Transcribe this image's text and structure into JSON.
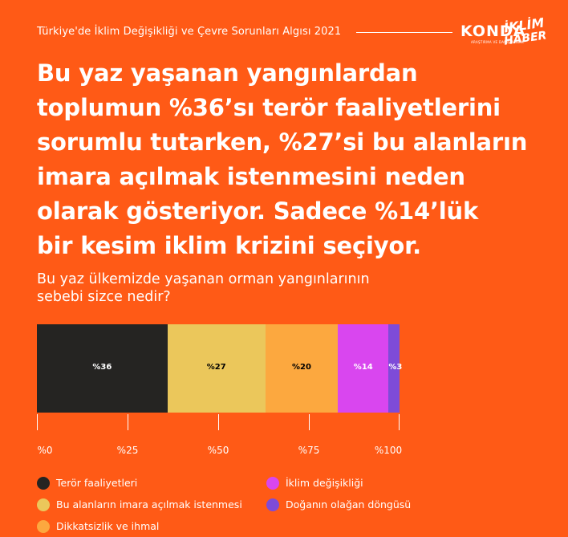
{
  "header": {
    "survey_title": "Türkiye'de İklim Değişikliği ve Çevre Sorunları Algısı 2021",
    "konda_logo": "KONDA",
    "konda_sub": "ARAŞTIRMA VE DANIŞMANLIK",
    "brand_line1": "İKLİM",
    "brand_line2": "HABER"
  },
  "headline": {
    "lines": [
      "Bu yaz yaşanan yangınlardan",
      "toplumun %36’sı terör faaliyetlerini",
      "sorumlu tutarken, %27’si bu alanların",
      "imara açılmak istenmesini neden",
      "olarak gösteriyor. Sadece %14’lük",
      "bir kesim iklim krizini seçiyor."
    ]
  },
  "question": {
    "lines": [
      "Bu yaz ülkemizde yaşanan orman yangınlarının",
      "sebebi sizce nedir?"
    ]
  },
  "chart_data": {
    "type": "bar",
    "orientation": "horizontal-stacked",
    "categories": [
      "Terör faaliyetleri",
      "Bu alanların imara açılmak istenmesi",
      "Dikkatsizlik ve ihmal",
      "İklim değişikliği",
      "Doğanın olağan döngüsü"
    ],
    "values": [
      36,
      27,
      20,
      14,
      3
    ],
    "data_labels": [
      "%36",
      "%27",
      "%20",
      "%14",
      "%3"
    ],
    "colors": [
      "#252422",
      "#EBC75B",
      "#FCA83F",
      "#D946EF",
      "#7E4BD8"
    ],
    "label_colors": [
      "#ffffff",
      "#000000",
      "#000000",
      "#ffffff",
      "#ffffff"
    ],
    "xlim": [
      0,
      100
    ],
    "x_ticks": [
      0,
      25,
      50,
      75,
      100
    ],
    "x_tick_labels": [
      "%0",
      "%25",
      "%50",
      "%75",
      "%100"
    ],
    "legend_placement": "bottom"
  }
}
